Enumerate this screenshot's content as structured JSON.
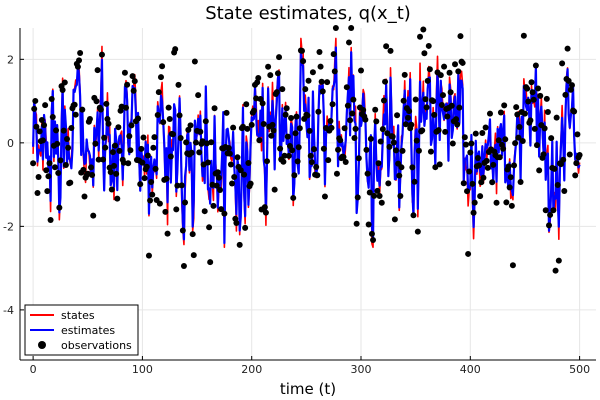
{
  "chart_data": {
    "type": "line",
    "title": "State estimates, q(x_t)",
    "xlabel": "time (t)",
    "ylabel": "",
    "xlim": [
      -12,
      515
    ],
    "ylim": [
      -5.2,
      2.75
    ],
    "xticks": [
      0,
      100,
      200,
      300,
      400,
      500
    ],
    "yticks": [
      -4,
      -2,
      0,
      2
    ],
    "grid": true,
    "legend_position": "bottom-left",
    "colors": {
      "states": "#ff0000",
      "estimates": "#0000ff",
      "observations": "#000000"
    },
    "series": [
      {
        "name": "states",
        "type": "line",
        "n_points": 501,
        "x_range": [
          0,
          500
        ],
        "y_min": -2.5,
        "y_max": 2.5
      },
      {
        "name": "estimates",
        "type": "line",
        "n_points": 501,
        "x_range": [
          0,
          500
        ],
        "y_min": -2.4,
        "y_max": 2.4
      },
      {
        "name": "observations",
        "type": "scatter",
        "n_points": 501,
        "x_range": [
          0,
          500
        ],
        "y_min": -3.3,
        "y_max": 2.75
      }
    ]
  }
}
